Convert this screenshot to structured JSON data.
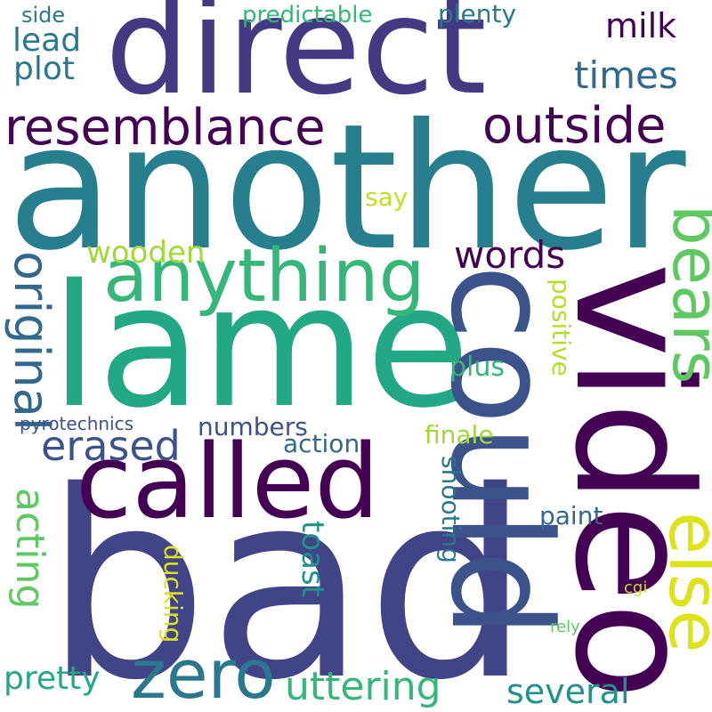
{
  "words": [
    {
      "text": "bad",
      "color": "#414487"
    },
    {
      "text": "another",
      "color": "#277f8e"
    },
    {
      "text": "lame",
      "color": "#22a884"
    },
    {
      "text": "direct",
      "color": "#443983"
    },
    {
      "text": "video",
      "color": "#440154"
    },
    {
      "text": "could",
      "color": "#3b528b"
    },
    {
      "text": "called",
      "color": "#440154"
    },
    {
      "text": "anything",
      "color": "#35b779"
    },
    {
      "text": "zero",
      "color": "#2a788e"
    },
    {
      "text": "else",
      "color": "#dde318"
    },
    {
      "text": "bears",
      "color": "#5ec962"
    },
    {
      "text": "resemblance",
      "color": "#440154"
    },
    {
      "text": "outside",
      "color": "#440154"
    },
    {
      "text": "original",
      "color": "#31688e"
    },
    {
      "text": "erased",
      "color": "#3b528b"
    },
    {
      "text": "acting",
      "color": "#5ec962"
    },
    {
      "text": "uttering",
      "color": "#35b779"
    },
    {
      "text": "words",
      "color": "#440154"
    },
    {
      "text": "times",
      "color": "#31688e"
    },
    {
      "text": "milk",
      "color": "#440154"
    },
    {
      "text": "lead",
      "color": "#2a788e"
    },
    {
      "text": "plot",
      "color": "#2a788e"
    },
    {
      "text": "side",
      "color": "#2a788e"
    },
    {
      "text": "predictable",
      "color": "#35b779"
    },
    {
      "text": "plenty",
      "color": "#2a788e"
    },
    {
      "text": "wooden",
      "color": "#a0da39"
    },
    {
      "text": "say",
      "color": "#c2df23"
    },
    {
      "text": "numbers",
      "color": "#3b528b"
    },
    {
      "text": "action",
      "color": "#31688e"
    },
    {
      "text": "pyrotechnics",
      "color": "#3b528b"
    },
    {
      "text": "plus",
      "color": "#35b779"
    },
    {
      "text": "finale",
      "color": "#a0da39"
    },
    {
      "text": "positive",
      "color": "#b5de2b"
    },
    {
      "text": "shooting",
      "color": "#2a788e"
    },
    {
      "text": "paint",
      "color": "#31688e"
    },
    {
      "text": "toast",
      "color": "#21918c"
    },
    {
      "text": "ducking",
      "color": "#dde318"
    },
    {
      "text": "cgi",
      "color": "#c2df23"
    },
    {
      "text": "rely",
      "color": "#5ec962"
    },
    {
      "text": "pretty",
      "color": "#22a884"
    },
    {
      "text": "several",
      "color": "#21918c"
    }
  ]
}
